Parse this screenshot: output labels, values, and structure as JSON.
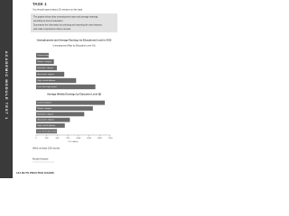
{
  "page": {
    "task": "TASK 1",
    "instruction": "You should spend about 20 minutes on this task.",
    "prompt": [
      "The graphs below show unemployment rates and average earnings",
      "according to level of education.",
      "Summarize the information by selecting and reporting the main features,",
      "and make comparisons where relevant."
    ],
    "side_label": "ACADEMIC MODULE TEST 1",
    "word_note": "Write at least 150 words.",
    "model": "Model Answer",
    "footer": "144 IELTS PRACTICE EXAMS"
  },
  "chart_data": [
    {
      "type": "hbar",
      "title": "Unemployment and Average Earnings by Educational Level in 2015",
      "subtitle": "Unemployment Rate by Education Level (%)",
      "categories": [
        "Doctoral degree",
        "Master's degree",
        "Bachelor's degree",
        "Associate's degree",
        "High school diploma",
        "Less than high school"
      ],
      "values": [
        1.7,
        2.4,
        2.8,
        3.8,
        5.4,
        8.0
      ],
      "color": "#6b6b6b",
      "xlim": [
        0,
        10
      ]
    },
    {
      "type": "hbar",
      "title": "Average Weekly Earnings by Education Level ($)",
      "categories": [
        "Doctoral degree",
        "Master's degree",
        "Bachelor's degree",
        "Associate's degree",
        "High school diploma",
        "Less than high school"
      ],
      "values": [
        1623,
        1341,
        1137,
        798,
        678,
        493
      ],
      "color": "#6b6b6b",
      "xlim": [
        0,
        1750
      ],
      "xticks": [
        0,
        250,
        500,
        750,
        1000,
        1250,
        1500,
        1750
      ],
      "xlabel": "U.S. dollars"
    }
  ]
}
